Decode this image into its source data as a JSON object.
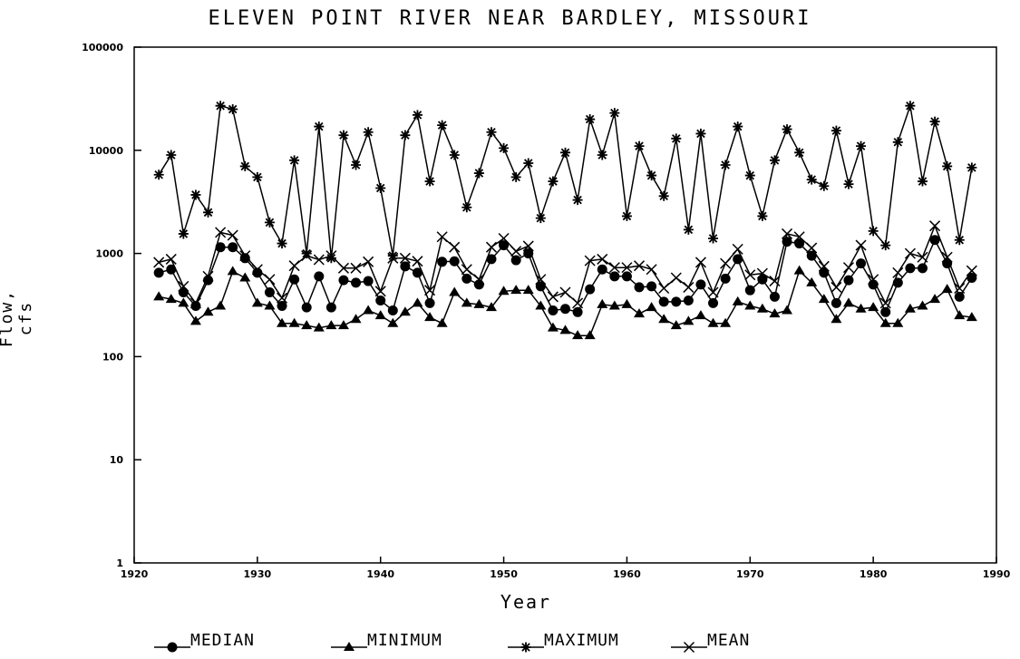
{
  "chart_data": {
    "type": "line",
    "title": "ELEVEN POINT RIVER NEAR BARDLEY, MISSOURI",
    "xlabel": "Year",
    "ylabel": "Flow, cfs",
    "xlim": [
      1920,
      1990
    ],
    "ylim": [
      1,
      100000
    ],
    "y_scale": "log",
    "grid": false,
    "legend_placement": "bottom",
    "x_ticks": [
      "1920",
      "1930",
      "1940",
      "1950",
      "1960",
      "1970",
      "1980",
      "1990"
    ],
    "y_ticks": [
      "1",
      "10",
      "100",
      "1000",
      "10000",
      "100000"
    ],
    "x": [
      1922,
      1923,
      1924,
      1925,
      1926,
      1927,
      1928,
      1929,
      1930,
      1931,
      1932,
      1933,
      1934,
      1935,
      1936,
      1937,
      1938,
      1939,
      1940,
      1941,
      1942,
      1943,
      1944,
      1945,
      1946,
      1947,
      1948,
      1949,
      1950,
      1951,
      1952,
      1953,
      1954,
      1955,
      1956,
      1957,
      1958,
      1959,
      1960,
      1961,
      1962,
      1963,
      1964,
      1965,
      1966,
      1967,
      1968,
      1969,
      1970,
      1971,
      1972,
      1973,
      1974,
      1975,
      1976,
      1977,
      1978,
      1979,
      1980,
      1981,
      1982,
      1983,
      1984,
      1985,
      1986,
      1987,
      1988
    ],
    "series": [
      {
        "name": "MEDIAN",
        "marker": "circle",
        "values": [
          650,
          700,
          420,
          310,
          550,
          1150,
          1150,
          900,
          650,
          420,
          310,
          560,
          300,
          600,
          300,
          550,
          520,
          540,
          350,
          280,
          750,
          650,
          330,
          830,
          840,
          570,
          500,
          880,
          1200,
          860,
          1000,
          480,
          280,
          290,
          270,
          450,
          700,
          600,
          600,
          470,
          480,
          340,
          340,
          350,
          500,
          330,
          570,
          880,
          440,
          560,
          380,
          1300,
          1250,
          950,
          650,
          330,
          550,
          800,
          500,
          270,
          520,
          720,
          720,
          1350,
          800,
          380,
          580
        ]
      },
      {
        "name": "MINIMUM",
        "marker": "triangle",
        "values": [
          380,
          360,
          330,
          220,
          270,
          310,
          670,
          580,
          330,
          310,
          210,
          210,
          200,
          190,
          200,
          200,
          230,
          280,
          250,
          210,
          270,
          330,
          240,
          210,
          420,
          330,
          320,
          300,
          430,
          440,
          440,
          310,
          190,
          180,
          160,
          160,
          320,
          310,
          320,
          260,
          300,
          230,
          200,
          220,
          250,
          210,
          210,
          340,
          310,
          290,
          260,
          280,
          680,
          520,
          360,
          230,
          330,
          290,
          300,
          210,
          210,
          290,
          310,
          360,
          450,
          250,
          240
        ]
      },
      {
        "name": "MAXIMUM",
        "marker": "star",
        "values": [
          5800,
          9000,
          1550,
          3700,
          2500,
          27000,
          25000,
          7000,
          5500,
          2000,
          1250,
          8000,
          1000,
          17000,
          900,
          14000,
          7200,
          15000,
          4300,
          950,
          14000,
          22000,
          5000,
          17500,
          9000,
          2800,
          6000,
          15000,
          10500,
          5500,
          7500,
          2200,
          5000,
          9500,
          3300,
          20000,
          9000,
          23000,
          2300,
          11000,
          5700,
          3600,
          13000,
          1700,
          14500,
          1400,
          7200,
          17000,
          5700,
          2300,
          8000,
          16000,
          9500,
          5200,
          4500,
          15500,
          4700,
          11000,
          1650,
          1200,
          12000,
          27000,
          5000,
          19000,
          7000,
          1350,
          6800
        ]
      },
      {
        "name": "MEAN",
        "marker": "x",
        "values": [
          820,
          880,
          480,
          330,
          600,
          1600,
          1500,
          950,
          700,
          560,
          370,
          760,
          950,
          870,
          950,
          720,
          720,
          830,
          430,
          900,
          900,
          840,
          440,
          1450,
          1150,
          700,
          560,
          1150,
          1400,
          1050,
          1180,
          560,
          380,
          420,
          330,
          850,
          880,
          730,
          730,
          760,
          700,
          460,
          580,
          470,
          820,
          420,
          800,
          1100,
          620,
          640,
          540,
          1550,
          1450,
          1130,
          750,
          470,
          730,
          1200,
          560,
          330,
          650,
          1000,
          920,
          1850,
          920,
          460,
          680
        ]
      }
    ]
  }
}
